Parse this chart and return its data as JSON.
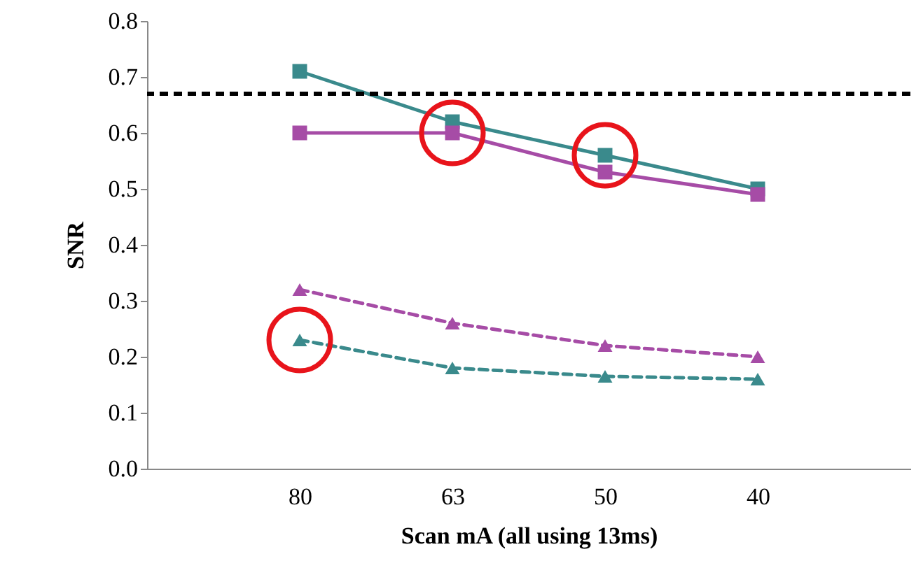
{
  "chart_data": {
    "type": "line",
    "xlabel": "Scan mA (all using 13ms)",
    "ylabel": "SNR",
    "categories": [
      "80",
      "63",
      "50",
      "40"
    ],
    "series": [
      {
        "color": "#3a8a8c",
        "values": [
          0.71,
          0.62,
          0.56,
          0.5
        ],
        "marker": "square",
        "line_style": "solid"
      },
      {
        "color": "#a64ca6",
        "values": [
          0.6,
          0.6,
          0.53,
          0.49
        ],
        "marker": "square",
        "line_style": "solid"
      },
      {
        "color": "#a64ca6",
        "values": [
          0.32,
          0.26,
          0.22,
          0.2
        ],
        "marker": "triangle",
        "line_style": "dashed"
      },
      {
        "color": "#3a8a8c",
        "values": [
          0.23,
          0.18,
          0.165,
          0.16
        ],
        "marker": "triangle",
        "line_style": "dashed"
      }
    ],
    "ylim": [
      0,
      0.8
    ],
    "yticks": [
      {
        "value": 0,
        "label": "0.0"
      },
      0.1,
      0.2,
      0.3,
      0.4,
      0.5,
      0.6,
      0.7,
      0.8
    ],
    "ref_lines": [
      {
        "axis": "y",
        "value": 0.67,
        "color": "#000000",
        "line_style": "dashed"
      }
    ],
    "grid": false
  }
}
